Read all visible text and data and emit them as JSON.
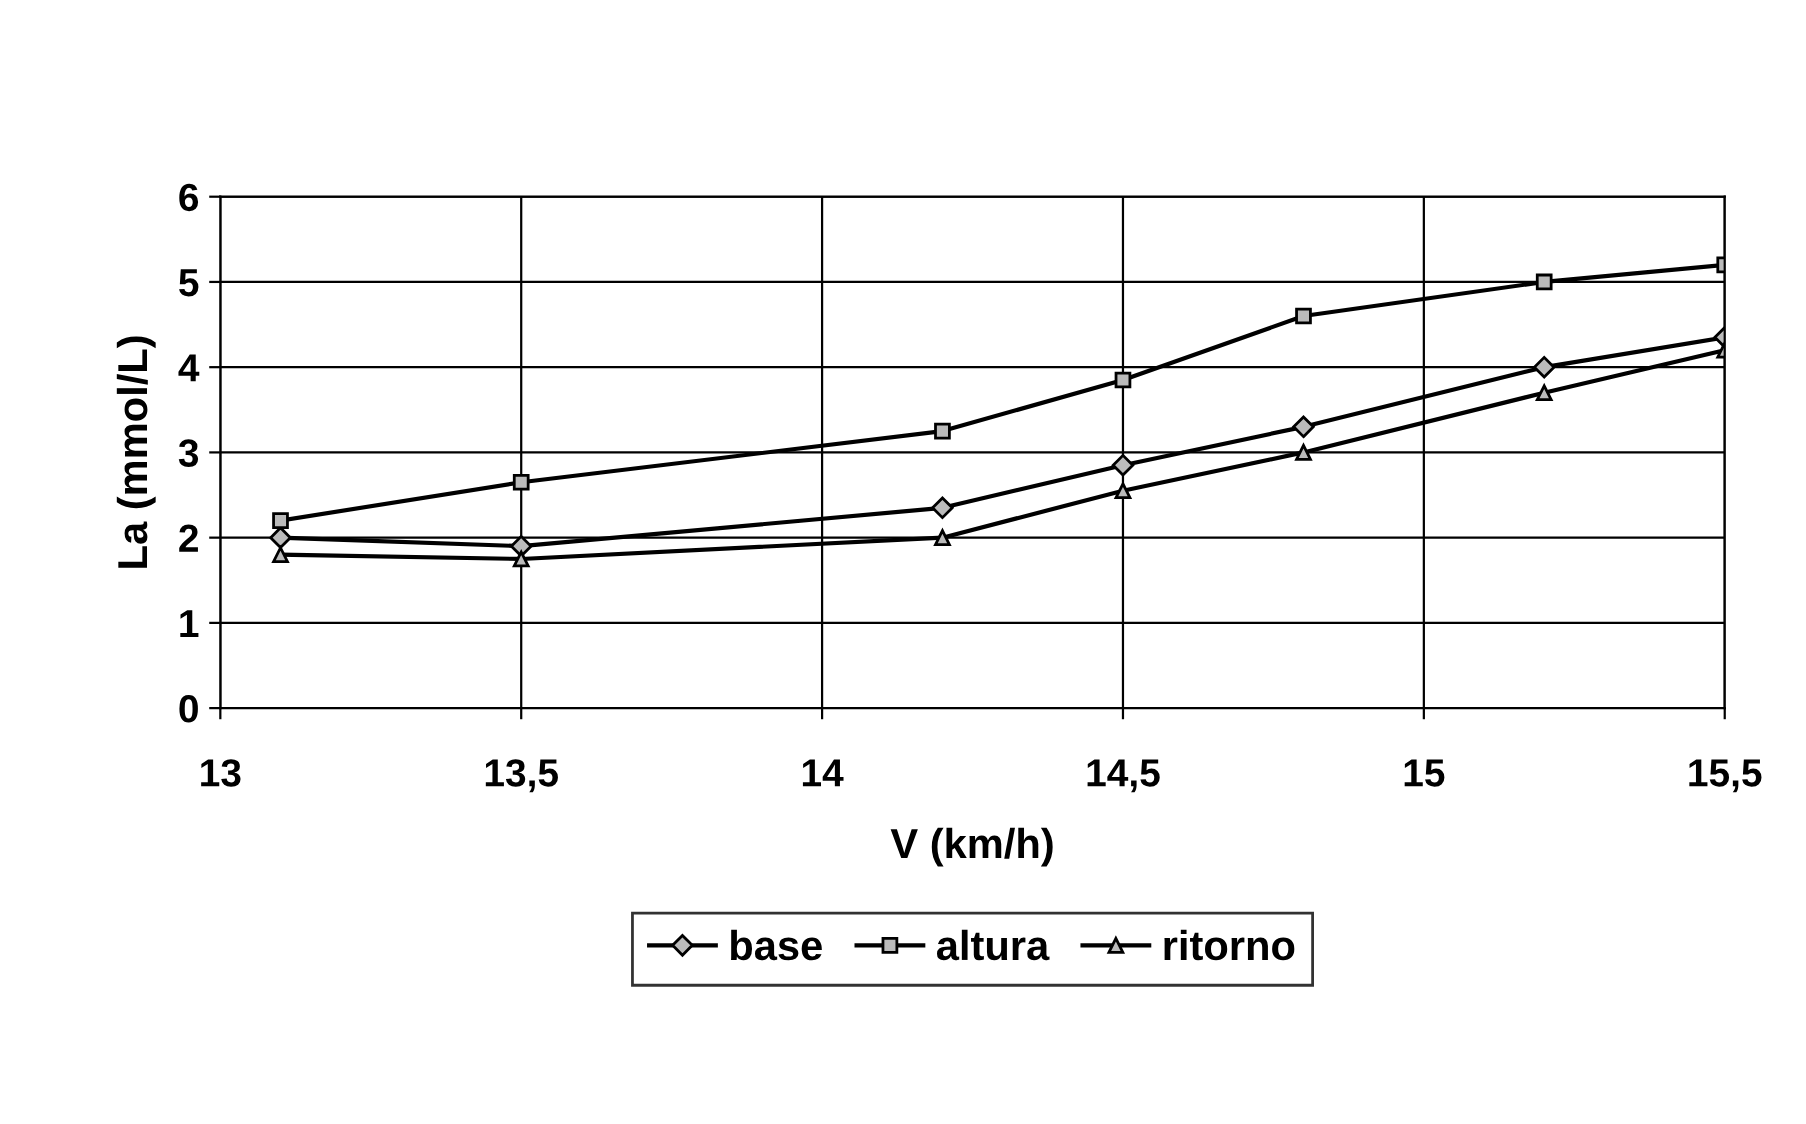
{
  "chart_data": {
    "type": "line",
    "xlabel": "V (km/h)",
    "ylabel": "La (mmol/L)",
    "x": [
      13.1,
      13.5,
      14.2,
      14.5,
      14.8,
      15.2,
      15.5
    ],
    "series": [
      {
        "name": "base",
        "color": "#000000",
        "marker": "diamond",
        "values": [
          2.0,
          1.9,
          2.35,
          2.85,
          3.3,
          4.0,
          4.35
        ]
      },
      {
        "name": "altura",
        "color": "#000000",
        "marker": "square",
        "values": [
          2.2,
          2.65,
          3.25,
          3.85,
          4.6,
          5.0,
          5.2
        ]
      },
      {
        "name": "ritorno",
        "color": "#000000",
        "marker": "triangle",
        "values": [
          1.8,
          1.75,
          2.0,
          2.55,
          3.0,
          3.7,
          4.2
        ]
      }
    ],
    "xlim": [
      13,
      15.5
    ],
    "xticks": [
      13,
      {
        "value": 13.5,
        "label": "13,5"
      },
      14,
      {
        "value": 14.5,
        "label": "14,5"
      },
      15,
      {
        "value": 15.5,
        "label": "15,5"
      }
    ],
    "ylim": [
      0,
      6
    ],
    "yticks": [
      0,
      1,
      2,
      3,
      4,
      5,
      6
    ],
    "grid": true,
    "legend": "bottom",
    "line_style": "solid"
  }
}
